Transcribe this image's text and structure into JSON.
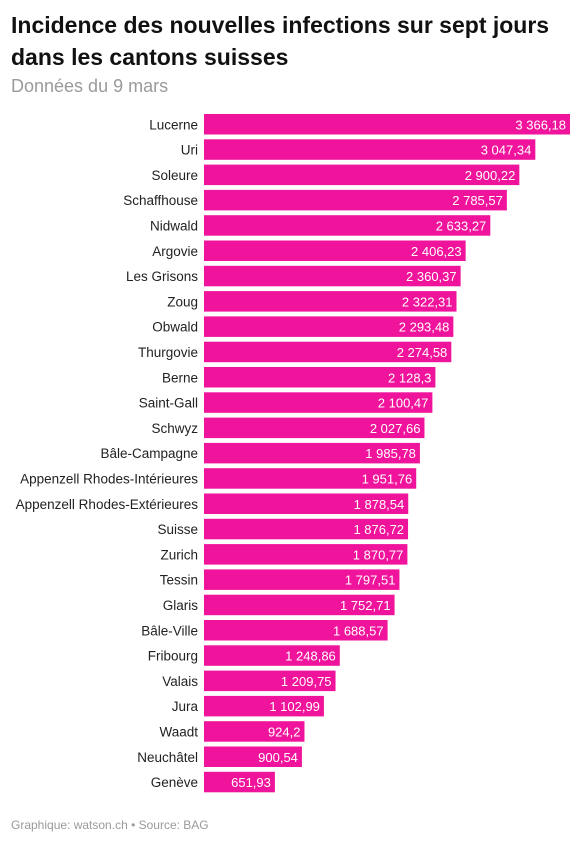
{
  "header": {
    "title": "Incidence des nouvelles infections sur sept jours dans les cantons suisses",
    "subtitle": "Données du 9 mars"
  },
  "footer": {
    "text": "Graphique: watson.ch • Source: BAG"
  },
  "chart_data": {
    "type": "bar",
    "orientation": "horizontal",
    "bar_color": "#f0139b",
    "categories": [
      "Lucerne",
      "Uri",
      "Soleure",
      "Schaffhouse",
      "Nidwald",
      "Argovie",
      "Les Grisons",
      "Zoug",
      "Obwald",
      "Thurgovie",
      "Berne",
      "Saint-Gall",
      "Schwyz",
      "Bâle-Campagne",
      "Appenzell Rhodes-Intérieures",
      "Appenzell Rhodes-Extérieures",
      "Suisse",
      "Zurich",
      "Tessin",
      "Glaris",
      "Bâle-Ville",
      "Fribourg",
      "Valais",
      "Jura",
      "Waadt",
      "Neuchâtel",
      "Genève"
    ],
    "values": [
      3366.18,
      3047.34,
      2900.22,
      2785.57,
      2633.27,
      2406.23,
      2360.37,
      2322.31,
      2293.48,
      2274.58,
      2128.3,
      2100.47,
      2027.66,
      1985.78,
      1951.76,
      1878.54,
      1876.72,
      1870.77,
      1797.51,
      1752.71,
      1688.57,
      1248.86,
      1209.75,
      1102.99,
      924.2,
      900.54,
      651.93
    ],
    "value_labels": [
      "3 366,18",
      "3 047,34",
      "2 900,22",
      "2 785,57",
      "2 633,27",
      "2 406,23",
      "2 360,37",
      "2 322,31",
      "2 293,48",
      "2 274,58",
      "2 128,3",
      "2 100,47",
      "2 027,66",
      "1 985,78",
      "1 951,76",
      "1 878,54",
      "1 876,72",
      "1 870,77",
      "1 797,51",
      "1 752,71",
      "1 688,57",
      "1 248,86",
      "1 209,75",
      "1 102,99",
      "924,2",
      "900,54",
      "651,93"
    ],
    "xlim": [
      0,
      3366.18
    ],
    "grid": false,
    "legend": "none"
  }
}
